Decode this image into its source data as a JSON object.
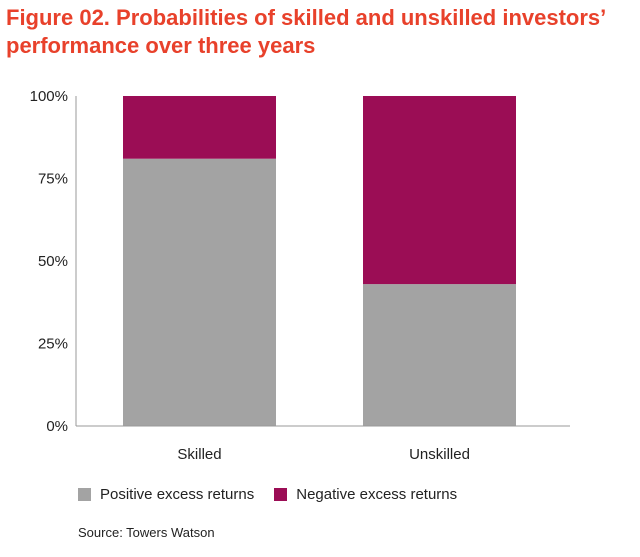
{
  "title_lines": [
    "Figure 02. Probabilities of skilled and unskilled investors’",
    "performance over three years"
  ],
  "source": "Source: Towers Watson",
  "colors": {
    "title": "#e8412b",
    "positive": "#a3a3a3",
    "negative": "#9b0d55",
    "axis": "#999999",
    "text": "#222222"
  },
  "chart_data": {
    "type": "bar",
    "stacked": true,
    "categories": [
      "Skilled",
      "Unskilled"
    ],
    "series": [
      {
        "name": "Positive excess returns",
        "values": [
          81,
          43
        ]
      },
      {
        "name": "Negative excess returns",
        "values": [
          19,
          57
        ]
      }
    ],
    "yticks": [
      "0%",
      "25%",
      "50%",
      "75%",
      "100%"
    ],
    "ylim": [
      0,
      100
    ],
    "unit": "%",
    "grid": false,
    "legend_position": "bottom"
  }
}
